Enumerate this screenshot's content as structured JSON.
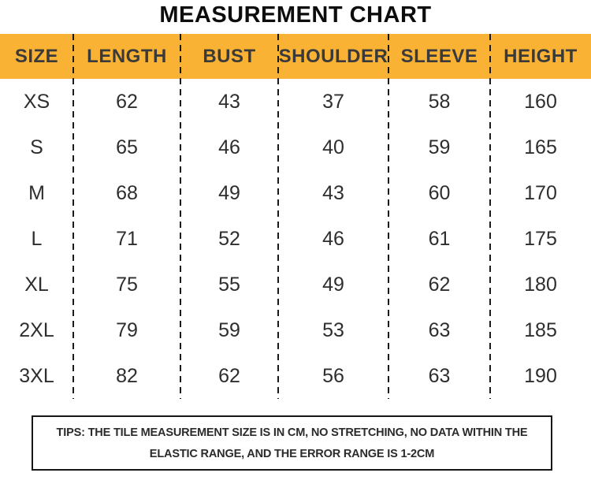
{
  "chart_data": {
    "type": "table",
    "title": "MEASUREMENT CHART",
    "columns": [
      "SIZE",
      "LENGTH",
      "BUST",
      "SHOULDER",
      "SLEEVE",
      "HEIGHT"
    ],
    "rows": [
      [
        "XS",
        "62",
        "43",
        "37",
        "58",
        "160"
      ],
      [
        "S",
        "65",
        "46",
        "40",
        "59",
        "165"
      ],
      [
        "M",
        "68",
        "49",
        "43",
        "60",
        "170"
      ],
      [
        "L",
        "71",
        "52",
        "46",
        "61",
        "175"
      ],
      [
        "XL",
        "75",
        "55",
        "49",
        "62",
        "180"
      ],
      [
        "2XL",
        "79",
        "59",
        "53",
        "63",
        "185"
      ],
      [
        "3XL",
        "82",
        "62",
        "56",
        "63",
        "190"
      ]
    ],
    "layout": {
      "legend": "none",
      "grid": "dashed-column-dividers"
    }
  },
  "tips": {
    "line1": "TIPS: THE TILE MEASUREMENT SIZE IS IN CM, NO STRETCHING, NO DATA WITHIN THE",
    "line2": "ELASTIC RANGE, AND THE ERROR RANGE IS 1-2CM"
  },
  "colors": {
    "header_bg": "#F9B234",
    "header_text": "#3A3A3A",
    "body_text": "#2E2E2E",
    "title_text": "#0D0D0D",
    "divider": "#1B1B1B",
    "tips_border": "#161616",
    "background": "#FFFFFF"
  }
}
